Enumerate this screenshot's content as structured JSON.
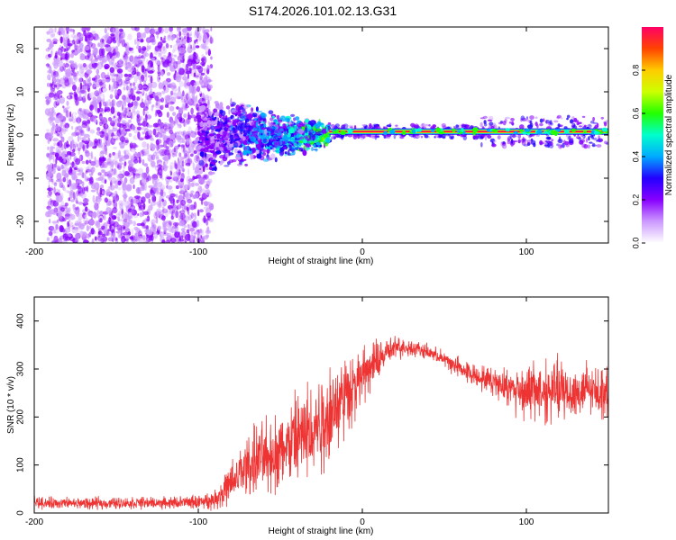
{
  "chart_data": [
    {
      "type": "heatmap",
      "title": "S174.2026.101.02.13.G31",
      "xlabel": "Height of straight line (km)",
      "ylabel": "Frequency (Hz)",
      "xlim": [
        -200,
        150
      ],
      "ylim": [
        -25,
        25
      ],
      "x_ticks": [
        -200,
        -100,
        0,
        100
      ],
      "x_tick_labels": [
        "-200",
        "-100",
        "0",
        "100"
      ],
      "y_ticks": [
        20,
        10,
        0,
        -10,
        -20
      ],
      "y_tick_labels": [
        "20",
        "10",
        "0",
        "-10",
        "-20"
      ],
      "colorbar": {
        "label": "Normalized spectral amplitude",
        "range": [
          0,
          1
        ],
        "ticks": [
          0.0,
          0.2,
          0.4,
          0.6,
          0.8
        ],
        "tick_labels": [
          "0.0",
          "0.2",
          "0.4",
          "0.6",
          "0.8"
        ],
        "colors": [
          "#ffffff",
          "#cc99ff",
          "#8800ff",
          "#2200ff",
          "#00aaff",
          "#00ffcc",
          "#22ff00",
          "#ccff00",
          "#ffcc00",
          "#ff4400",
          "#ff0066"
        ]
      },
      "segments": [
        {
          "name": "noise",
          "x": [
            -200,
            -100
          ],
          "frequency_spread_hz": 25,
          "amplitude": 0.15
        },
        {
          "name": "transition",
          "x": [
            -100,
            -20
          ],
          "frequency_spread_hz": [
            10,
            3
          ],
          "amplitude": 0.25
        },
        {
          "name": "carrier",
          "x": [
            -20,
            150
          ],
          "frequency_hz": 0.8,
          "amplitude": 0.95
        }
      ]
    },
    {
      "type": "line",
      "xlabel": "Height of straight line (km)",
      "ylabel": "SNR (10 * v/v)",
      "xlim": [
        -200,
        150
      ],
      "ylim": [
        0,
        450
      ],
      "x_ticks": [
        -200,
        -100,
        0,
        100
      ],
      "x_tick_labels": [
        "-200",
        "-100",
        "0",
        "100"
      ],
      "y_ticks": [
        0,
        100,
        200,
        300,
        400
      ],
      "y_tick_labels": [
        "0",
        "100",
        "200",
        "300",
        "400"
      ],
      "series": [
        {
          "name": "SNR",
          "color": "#ee3333",
          "x": [
            -200,
            -180,
            -160,
            -140,
            -120,
            -100,
            -90,
            -80,
            -70,
            -60,
            -50,
            -40,
            -30,
            -20,
            -10,
            0,
            10,
            20,
            30,
            40,
            50,
            60,
            70,
            80,
            90,
            100,
            110,
            120,
            130,
            140,
            150
          ],
          "values": [
            22,
            20,
            20,
            21,
            21,
            23,
            28,
            60,
            100,
            115,
            130,
            150,
            175,
            210,
            250,
            285,
            320,
            345,
            345,
            335,
            320,
            300,
            285,
            275,
            260,
            255,
            255,
            255,
            250,
            255,
            255
          ],
          "noise_amplitude": [
            10,
            10,
            10,
            10,
            10,
            12,
            15,
            40,
            55,
            60,
            70,
            80,
            90,
            95,
            70,
            45,
            35,
            20,
            15,
            12,
            15,
            18,
            20,
            22,
            35,
            50,
            55,
            55,
            50,
            45,
            40
          ]
        }
      ]
    }
  ]
}
